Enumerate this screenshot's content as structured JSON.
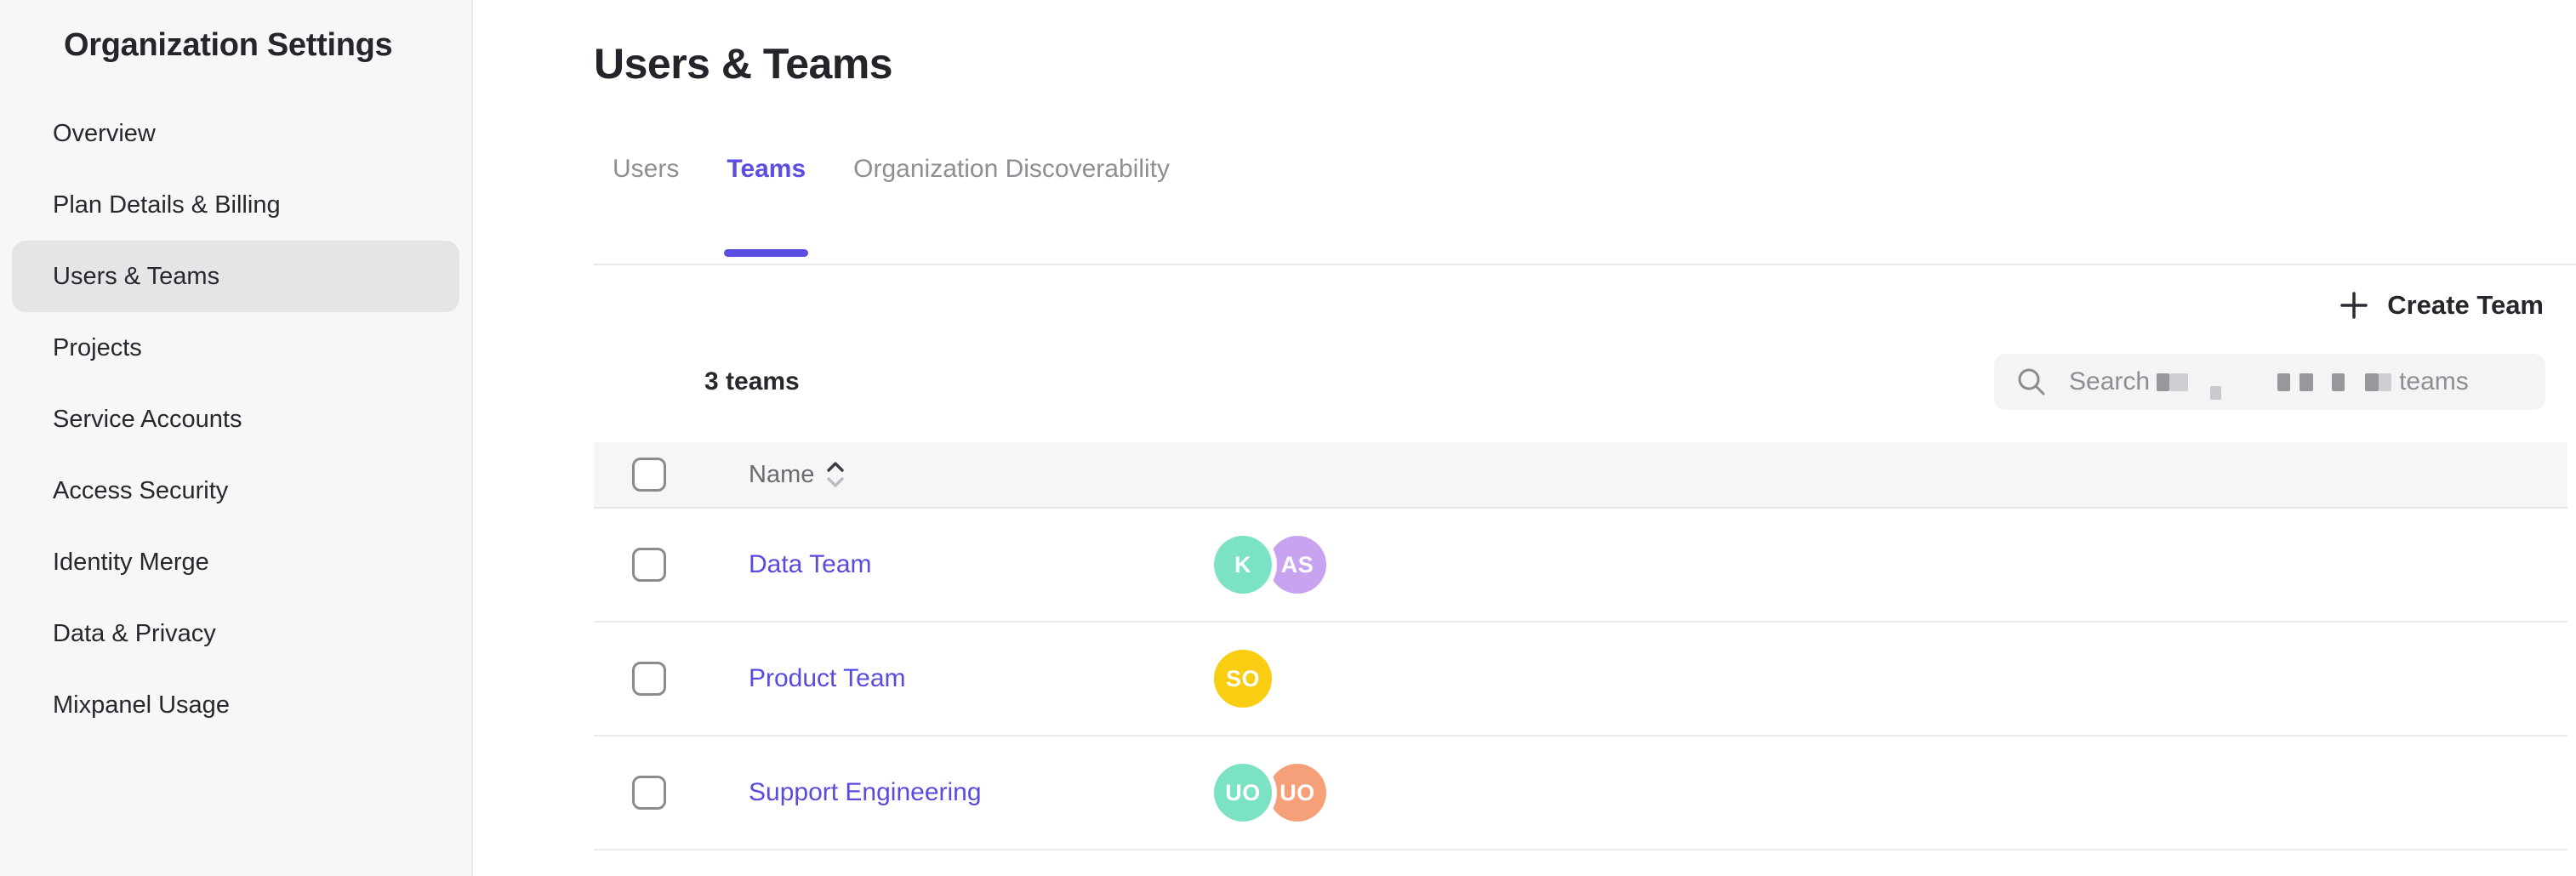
{
  "sidebar": {
    "title": "Organization Settings",
    "items": [
      {
        "label": "Overview",
        "active": false
      },
      {
        "label": "Plan Details & Billing",
        "active": false
      },
      {
        "label": "Users & Teams",
        "active": true
      },
      {
        "label": "Projects",
        "active": false
      },
      {
        "label": "Service Accounts",
        "active": false
      },
      {
        "label": "Access Security",
        "active": false
      },
      {
        "label": "Identity Merge",
        "active": false
      },
      {
        "label": "Data & Privacy",
        "active": false
      },
      {
        "label": "Mixpanel Usage",
        "active": false
      }
    ]
  },
  "main": {
    "title": "Users & Teams",
    "tabs": [
      {
        "label": "Users",
        "active": false
      },
      {
        "label": "Teams",
        "active": true
      },
      {
        "label": "Organization Discoverability",
        "active": false
      }
    ],
    "create_team_label": "Create Team",
    "teams_count": "3 teams",
    "search": {
      "prefix": "Search",
      "suffix": "teams",
      "redacted_middle": true
    },
    "table": {
      "name_column": "Name",
      "rows": [
        {
          "name": "Data Team",
          "avatars": [
            {
              "initials": "K",
              "color": "#7ce2c4"
            },
            {
              "initials": "AS",
              "color": "#c8a3f0"
            }
          ]
        },
        {
          "name": "Product Team",
          "avatars": [
            {
              "initials": "SO",
              "color": "#f8cd12"
            }
          ]
        },
        {
          "name": "Support Engineering",
          "avatars": [
            {
              "initials": "UO",
              "color": "#7ce2c4"
            },
            {
              "initials": "UO",
              "color": "#f5a078"
            }
          ]
        }
      ]
    }
  },
  "colors": {
    "accent": "#5b4ee2",
    "link": "#5a4be0",
    "sidebar_bg": "#f7f7f8",
    "header_bg": "#f6f6f7",
    "selected_item_bg": "#e5e5e8"
  }
}
